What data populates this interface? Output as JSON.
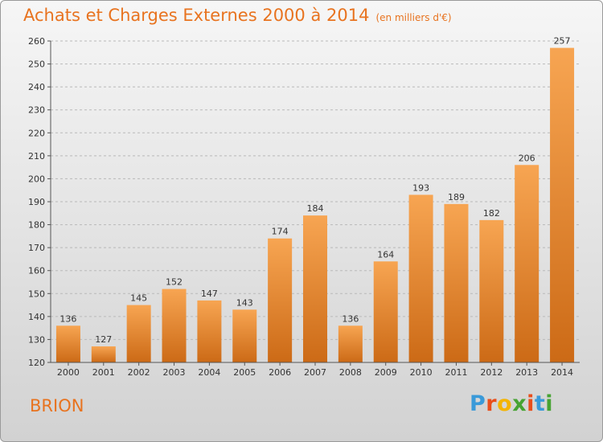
{
  "title": "Achats et Charges Externes 2000 à 2014",
  "unit": "(en milliers d'€)",
  "city": "BRION",
  "logo": {
    "letters": [
      "P",
      "r",
      "o",
      "x",
      "i",
      "t",
      "i"
    ],
    "colors": [
      "#3a9ad9",
      "#e94e1b",
      "#f4b400",
      "#46a332",
      "#e94e1b",
      "#3a9ad9",
      "#46a332"
    ]
  },
  "colors": {
    "accent": "#e8731f",
    "bar_top": "#f7a552",
    "bar_bottom": "#cc6a16",
    "grid": "#b9b9b9"
  },
  "chart_data": {
    "type": "bar",
    "title": "Achats et Charges Externes 2000 à 2014",
    "unit": "(en milliers d'€)",
    "categories": [
      "2000",
      "2001",
      "2002",
      "2003",
      "2004",
      "2005",
      "2006",
      "2007",
      "2008",
      "2009",
      "2010",
      "2011",
      "2012",
      "2013",
      "2014"
    ],
    "values": [
      136,
      127,
      145,
      152,
      147,
      143,
      174,
      184,
      136,
      164,
      193,
      189,
      182,
      206,
      257
    ],
    "ylim": [
      120,
      260
    ],
    "yticks": [
      120,
      130,
      140,
      150,
      160,
      170,
      180,
      190,
      200,
      210,
      220,
      230,
      240,
      250,
      260
    ],
    "grid": "horizontal dashed",
    "legend": "none"
  }
}
